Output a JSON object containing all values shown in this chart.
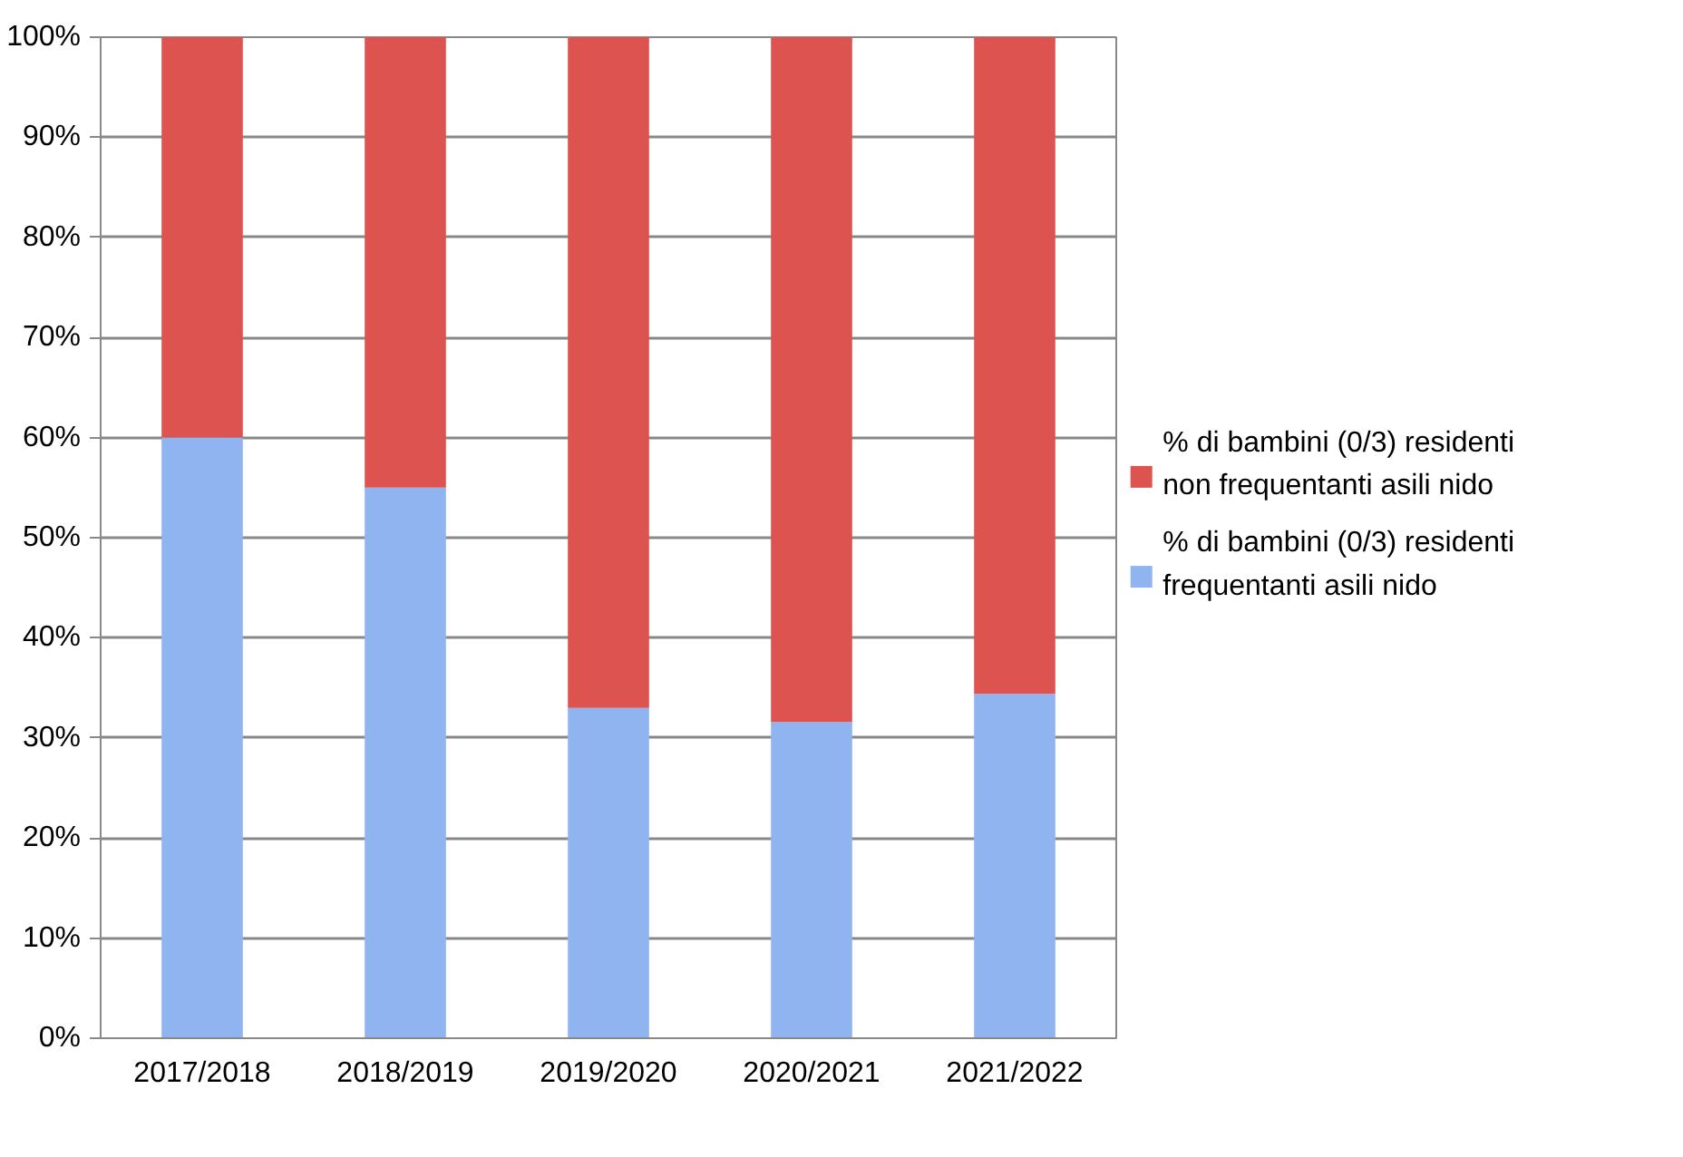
{
  "chart_data": {
    "type": "bar",
    "stacked": true,
    "categories": [
      "2017/2018",
      "2018/2019",
      "2019/2020",
      "2020/2021",
      "2021/2022"
    ],
    "series": [
      {
        "name": "% di bambini (0/3) residenti frequentanti asili nido",
        "color": "#8fb4f0",
        "values": [
          60,
          55,
          33,
          31.6,
          34.4
        ]
      },
      {
        "name": "% di bambini (0/3) residenti non frequentanti asili nido",
        "color": "#dc5350",
        "values": [
          40,
          45,
          67,
          68.4,
          65.6
        ]
      }
    ],
    "ylim": [
      0,
      100
    ],
    "yticks": [
      {
        "value": 0,
        "label": "0%"
      },
      {
        "value": 10,
        "label": "10%"
      },
      {
        "value": 20,
        "label": "20%"
      },
      {
        "value": 30,
        "label": "30%"
      },
      {
        "value": 40,
        "label": "40%"
      },
      {
        "value": 50,
        "label": "50%"
      },
      {
        "value": 60,
        "label": "60%"
      },
      {
        "value": 70,
        "label": "70%"
      },
      {
        "value": 80,
        "label": "80%"
      },
      {
        "value": 90,
        "label": "90%"
      },
      {
        "value": 100,
        "label": "100%"
      }
    ],
    "grid": "y",
    "legend": "right"
  }
}
